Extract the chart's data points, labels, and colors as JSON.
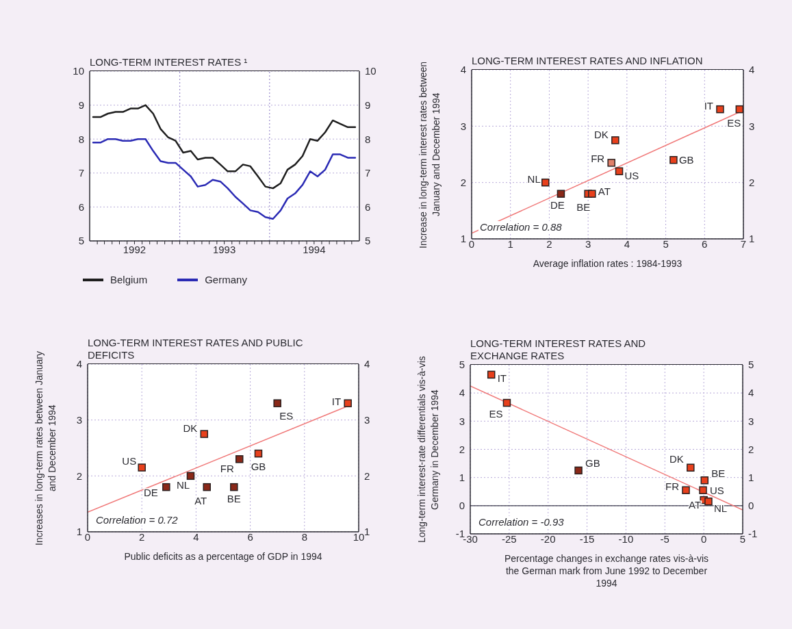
{
  "chart_data": [
    {
      "type": "line",
      "title": "LONG-TERM INTEREST RATES ¹",
      "legend": "bottom",
      "grid": "y",
      "x": [
        "1992-01-15",
        "1992-02-15",
        "1992-03-15",
        "1992-04-15",
        "1992-05-15",
        "1992-06-15",
        "1992-07-15",
        "1992-08-15",
        "1992-09-15",
        "1992-10-15",
        "1992-11-15",
        "1992-12-15",
        "1993-01-15",
        "1993-02-15",
        "1993-03-15",
        "1993-04-15",
        "1993-05-15",
        "1993-06-15",
        "1993-07-15",
        "1993-08-15",
        "1993-09-15",
        "1993-10-15",
        "1993-11-15",
        "1993-12-15",
        "1994-01-15",
        "1994-02-15",
        "1994-03-15",
        "1994-04-15",
        "1994-05-15",
        "1994-06-15",
        "1994-07-15",
        "1994-08-15",
        "1994-09-15",
        "1994-10-15",
        "1994-11-15",
        "1994-12-15"
      ],
      "series": [
        {
          "name": "Belgium",
          "color": "#1e1e1e",
          "values": [
            8.65,
            8.65,
            8.75,
            8.8,
            8.8,
            8.9,
            8.9,
            9.0,
            8.75,
            8.3,
            8.05,
            7.95,
            7.6,
            7.65,
            7.4,
            7.45,
            7.45,
            7.25,
            7.05,
            7.05,
            7.25,
            7.2,
            6.9,
            6.6,
            6.55,
            6.7,
            7.1,
            7.25,
            7.5,
            8.0,
            7.95,
            8.2,
            8.55,
            8.45,
            8.35,
            8.35
          ]
        },
        {
          "name": "Germany",
          "color": "#2a2ab4",
          "values": [
            7.9,
            7.9,
            8.0,
            8.0,
            7.95,
            7.95,
            8.0,
            8.0,
            7.65,
            7.35,
            7.3,
            7.3,
            7.1,
            6.9,
            6.6,
            6.65,
            6.8,
            6.75,
            6.55,
            6.3,
            6.1,
            5.9,
            5.85,
            5.7,
            5.65,
            5.9,
            6.25,
            6.4,
            6.65,
            7.05,
            6.9,
            7.1,
            7.55,
            7.55,
            7.45,
            7.45
          ]
        }
      ],
      "xlim": [
        "1992-01-01",
        "1995-01-01"
      ],
      "xticks": [
        {
          "value": "1992-02-01",
          "label": null
        },
        {
          "value": "1992-03-01",
          "label": null
        },
        {
          "value": "1992-04-01",
          "label": null
        },
        {
          "value": "1992-05-01",
          "label": null
        },
        {
          "value": "1992-06-01",
          "label": null
        },
        {
          "value": "1992-07-01",
          "label": "1992"
        },
        {
          "value": "1992-08-01",
          "label": null
        },
        {
          "value": "1992-09-01",
          "label": null
        },
        {
          "value": "1992-10-01",
          "label": null
        },
        {
          "value": "1992-11-01",
          "label": null
        },
        {
          "value": "1992-12-01",
          "label": null
        },
        {
          "value": "1993-01-01",
          "label": null
        },
        {
          "value": "1993-02-01",
          "label": null
        },
        {
          "value": "1993-03-01",
          "label": null
        },
        {
          "value": "1993-04-01",
          "label": null
        },
        {
          "value": "1993-05-01",
          "label": null
        },
        {
          "value": "1993-06-01",
          "label": null
        },
        {
          "value": "1993-07-01",
          "label": "1993"
        },
        {
          "value": "1993-08-01",
          "label": null
        },
        {
          "value": "1993-09-01",
          "label": null
        },
        {
          "value": "1993-10-01",
          "label": null
        },
        {
          "value": "1993-11-01",
          "label": null
        },
        {
          "value": "1993-12-01",
          "label": null
        },
        {
          "value": "1994-01-01",
          "label": null
        },
        {
          "value": "1994-02-01",
          "label": null
        },
        {
          "value": "1994-03-01",
          "label": null
        },
        {
          "value": "1994-04-01",
          "label": null
        },
        {
          "value": "1994-05-01",
          "label": null
        },
        {
          "value": "1994-06-01",
          "label": null
        },
        {
          "value": "1994-07-01",
          "label": "1994"
        },
        {
          "value": "1994-08-01",
          "label": null
        },
        {
          "value": "1994-09-01",
          "label": null
        },
        {
          "value": "1994-10-01",
          "label": null
        },
        {
          "value": "1994-11-01",
          "label": null
        },
        {
          "value": "1994-12-01",
          "label": null
        }
      ],
      "ylim": [
        5,
        10
      ],
      "yticks": [
        5,
        6,
        7,
        8,
        9,
        10
      ],
      "y2lim": [
        5,
        10
      ],
      "y2ticks": [
        5,
        6,
        7,
        8,
        9,
        10
      ],
      "ref_lines": [
        {
          "axis": "x",
          "value": "1993-01-01",
          "color": "#9a8ccc",
          "line_style": "dotted"
        },
        {
          "axis": "x",
          "value": "1994-01-01",
          "color": "#9a8ccc",
          "line_style": "dotted"
        }
      ]
    },
    {
      "type": "scatter",
      "title": "LONG-TERM INTEREST RATES AND INFLATION",
      "xlabel": "Average inflation rates : 1984-1993",
      "ylabel": "Increase in long-term interest rates between January and December 1994",
      "marker": "square",
      "grid": true,
      "series": [
        {
          "name": "NL",
          "color": "#e8401c",
          "x": [
            1.9
          ],
          "values": [
            2.0
          ]
        },
        {
          "name": "DE",
          "color": "#8a2818",
          "x": [
            2.3
          ],
          "values": [
            1.8
          ]
        },
        {
          "name": "BE",
          "color": "#e8401c",
          "x": [
            3.0
          ],
          "values": [
            1.8
          ]
        },
        {
          "name": "AT",
          "color": "#e8401c",
          "x": [
            3.1
          ],
          "values": [
            1.8
          ]
        },
        {
          "name": "FR",
          "color": "#e0806a",
          "x": [
            3.6
          ],
          "values": [
            2.35
          ]
        },
        {
          "name": "DK",
          "color": "#e8401c",
          "x": [
            3.7
          ],
          "values": [
            2.75
          ]
        },
        {
          "name": "US",
          "color": "#e8401c",
          "x": [
            3.8
          ],
          "values": [
            2.2
          ]
        },
        {
          "name": "GB",
          "color": "#e8401c",
          "x": [
            5.2
          ],
          "values": [
            2.4
          ]
        },
        {
          "name": "IT",
          "color": "#e8401c",
          "x": [
            6.4
          ],
          "values": [
            3.3
          ]
        },
        {
          "name": "ES",
          "color": "#e8401c",
          "x": [
            6.9
          ],
          "values": [
            3.3
          ]
        },
        {
          "type": "line",
          "marker": "none",
          "color": "#f07878",
          "x": [
            0,
            6.9
          ],
          "values": [
            1.1,
            3.25
          ]
        }
      ],
      "xlim": [
        0,
        7
      ],
      "xticks": [
        0,
        1,
        2,
        3,
        4,
        5,
        6,
        7
      ],
      "ylim": [
        1,
        4
      ],
      "yticks": [
        1,
        2,
        3,
        4
      ],
      "y2lim": [
        1,
        4
      ],
      "y2ticks": [
        1,
        2,
        3,
        4
      ],
      "annotations": [
        "Correlation = 0.88"
      ]
    },
    {
      "type": "scatter",
      "title": "LONG-TERM INTEREST RATES AND PUBLIC DEFICITS",
      "xlabel": "Public deficits as a percentage of GDP in 1994",
      "ylabel": "Increases in long-term rates between January and December 1994",
      "marker": "square",
      "grid": true,
      "series": [
        {
          "name": "US",
          "color": "#e8401c",
          "x": [
            2.0
          ],
          "values": [
            2.15
          ]
        },
        {
          "name": "DE",
          "color": "#8a2818",
          "x": [
            2.9
          ],
          "values": [
            1.8
          ]
        },
        {
          "name": "NL",
          "color": "#8a2818",
          "x": [
            3.8
          ],
          "values": [
            2.0
          ]
        },
        {
          "name": "DK",
          "color": "#e8401c",
          "x": [
            4.3
          ],
          "values": [
            2.75
          ]
        },
        {
          "name": "AT",
          "color": "#8a2818",
          "x": [
            4.4
          ],
          "values": [
            1.8
          ]
        },
        {
          "name": "BE",
          "color": "#8a2818",
          "x": [
            5.4
          ],
          "values": [
            1.8
          ]
        },
        {
          "name": "FR",
          "color": "#8a2818",
          "x": [
            5.6
          ],
          "values": [
            2.3
          ]
        },
        {
          "name": "GB",
          "color": "#e8401c",
          "x": [
            6.3
          ],
          "values": [
            2.4
          ]
        },
        {
          "name": "ES",
          "color": "#8a2818",
          "x": [
            7.0
          ],
          "values": [
            3.3
          ]
        },
        {
          "name": "IT",
          "color": "#e8401c",
          "x": [
            9.6
          ],
          "values": [
            3.3
          ]
        },
        {
          "type": "line",
          "marker": "none",
          "color": "#f07878",
          "x": [
            0,
            9.6
          ],
          "values": [
            1.35,
            3.25
          ]
        }
      ],
      "xlim": [
        0,
        10
      ],
      "xticks": [
        0,
        2,
        4,
        6,
        8,
        10
      ],
      "ylim": [
        1,
        4
      ],
      "yticks": [
        1,
        2,
        3,
        4
      ],
      "y2lim": [
        1,
        4
      ],
      "y2ticks": [
        1,
        2,
        3,
        4
      ],
      "annotations": [
        "Correlation = 0.72"
      ]
    },
    {
      "type": "scatter",
      "title": "LONG-TERM INTEREST RATES AND EXCHANGE RATES",
      "xlabel": "Percentage changes in exchange rates vis-à-vis the German mark from June 1992 to December 1994",
      "ylabel": "Long-term interest-rate differentials vis-à-vis Germany in December 1994",
      "marker": "square",
      "grid": true,
      "series": [
        {
          "name": "IT",
          "color": "#e8401c",
          "x": [
            -27.3
          ],
          "values": [
            4.65
          ]
        },
        {
          "name": "ES",
          "color": "#e8401c",
          "x": [
            -25.3
          ],
          "values": [
            3.65
          ]
        },
        {
          "name": "GB",
          "color": "#8a2818",
          "x": [
            -16.1
          ],
          "values": [
            1.25
          ]
        },
        {
          "name": "DK",
          "color": "#e8401c",
          "x": [
            -1.7
          ],
          "values": [
            1.35
          ]
        },
        {
          "name": "FR",
          "color": "#e8401c",
          "x": [
            -2.3
          ],
          "values": [
            0.55
          ]
        },
        {
          "name": "BE",
          "color": "#e8401c",
          "x": [
            0.1
          ],
          "values": [
            0.9
          ]
        },
        {
          "name": "US",
          "color": "#e8401c",
          "x": [
            -0.1
          ],
          "values": [
            0.55
          ]
        },
        {
          "name": "AT",
          "color": "#e8401c",
          "x": [
            0
          ],
          "values": [
            0.2
          ]
        },
        {
          "name": "NL",
          "color": "#e8401c",
          "x": [
            0.6
          ],
          "values": [
            0.15
          ]
        },
        {
          "type": "line",
          "marker": "none",
          "color": "#f07878",
          "x": [
            -30,
            5
          ],
          "values": [
            4.25,
            -0.15
          ]
        }
      ],
      "xlim": [
        -30,
        5
      ],
      "xticks": [
        -30,
        -25,
        -20,
        -15,
        -10,
        -5,
        0,
        5
      ],
      "ylim": [
        -1,
        5
      ],
      "yticks": [
        -1,
        0,
        1,
        2,
        3,
        4,
        5
      ],
      "y2lim": [
        -1,
        5
      ],
      "y2ticks": [
        -1,
        0,
        1,
        2,
        3,
        4,
        5
      ],
      "ref_lines": [
        {
          "axis": "y",
          "value": 0,
          "color": "#3a3a4a",
          "line_style": "solid"
        }
      ],
      "annotations": [
        "Correlation = -0.93"
      ]
    }
  ]
}
